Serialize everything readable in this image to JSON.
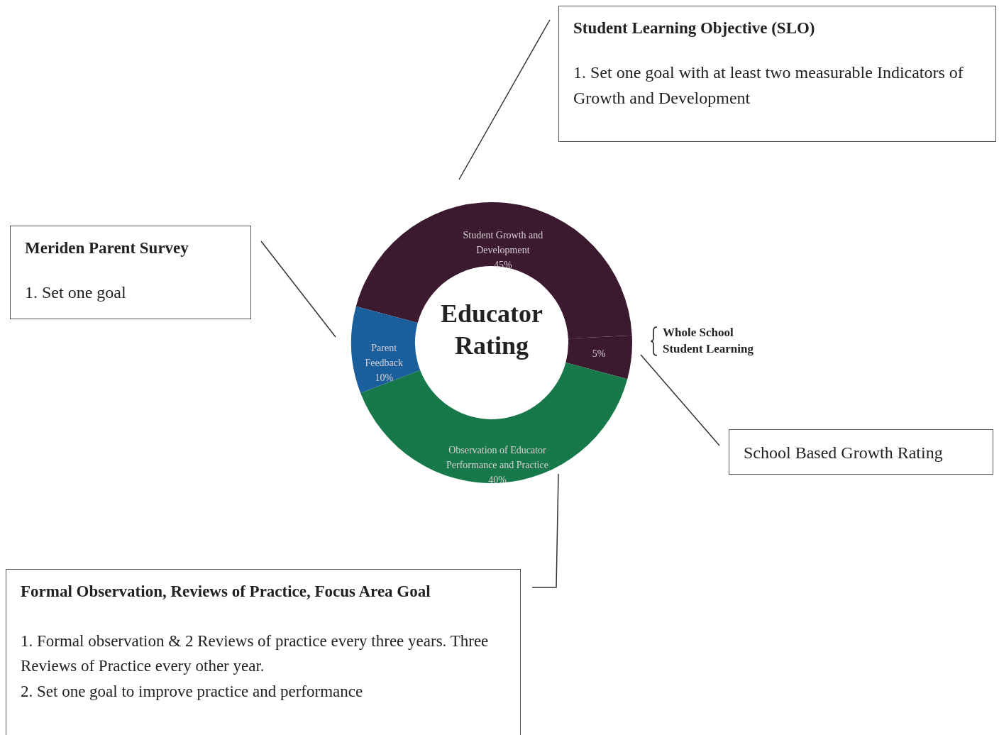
{
  "chart_data": {
    "type": "donut",
    "title": "Educator Rating",
    "categories": [
      "Student Growth and Development",
      "Whole School Student Learning",
      "Observation of Educator Performance and Practice",
      "Parent Feedback"
    ],
    "values": [
      45,
      5,
      40,
      10
    ],
    "value_labels": [
      "45%",
      "5%",
      "40%",
      "10%"
    ],
    "colors": [
      "#3b1a30",
      "#3b1a30",
      "#17784a",
      "#1b5e9c"
    ],
    "annotations": [
      "Student Learning Objective (SLO)",
      "1. Set one goal with at least two measurable Indicators of Growth and Development",
      "Meriden Parent Survey",
      "1. Set one goal",
      "School Based Growth Rating",
      "Formal Observation, Reviews of Practice, Focus Area Goal",
      "1. Formal observation & 2 Reviews of practice every three years.  Three Reviews of Practice every other year.",
      "2. Set one goal to improve practice and performance"
    ]
  }
}
